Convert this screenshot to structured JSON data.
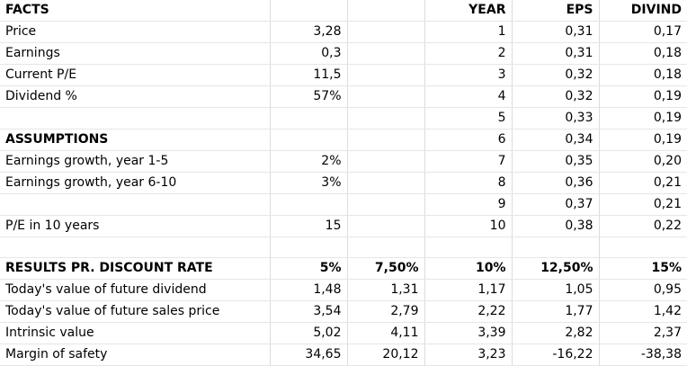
{
  "sheet": {
    "rows": [
      [
        "FACTS",
        "",
        "",
        "YEAR",
        "EPS",
        "DIVIND"
      ],
      [
        "Price",
        "3,28",
        "",
        "1",
        "0,31",
        "0,17"
      ],
      [
        "Earnings",
        "0,3",
        "",
        "2",
        "0,31",
        "0,18"
      ],
      [
        "Current P/E",
        "11,5",
        "",
        "3",
        "0,32",
        "0,18"
      ],
      [
        "Dividend %",
        "57%",
        "",
        "4",
        "0,32",
        "0,19"
      ],
      [
        "",
        "",
        "",
        "5",
        "0,33",
        "0,19"
      ],
      [
        "ASSUMPTIONS",
        "",
        "",
        "6",
        "0,34",
        "0,19"
      ],
      [
        "Earnings growth, year 1-5",
        "2%",
        "",
        "7",
        "0,35",
        "0,20"
      ],
      [
        "Earnings growth, year 6-10",
        "3%",
        "",
        "8",
        "0,36",
        "0,21"
      ],
      [
        "",
        "",
        "",
        "9",
        "0,37",
        "0,21"
      ],
      [
        "P/E in 10 years",
        "15",
        "",
        "10",
        "0,38",
        "0,22"
      ],
      [
        "",
        "",
        "",
        "",
        "",
        ""
      ],
      [
        "RESULTS PR. DISCOUNT RATE",
        "5%",
        "7,50%",
        "10%",
        "12,50%",
        "15%"
      ],
      [
        "Today's value of future dividend",
        "1,48",
        "1,31",
        "1,17",
        "1,05",
        "0,95"
      ],
      [
        "Today's value of future sales price",
        "3,54",
        "2,79",
        "2,22",
        "1,77",
        "1,42"
      ],
      [
        "Intrinsic value",
        "5,02",
        "4,11",
        "3,39",
        "2,82",
        "2,37"
      ],
      [
        "Margin of safety",
        "34,65",
        "20,12",
        "3,23",
        "-16,22",
        "-38,38"
      ]
    ]
  }
}
